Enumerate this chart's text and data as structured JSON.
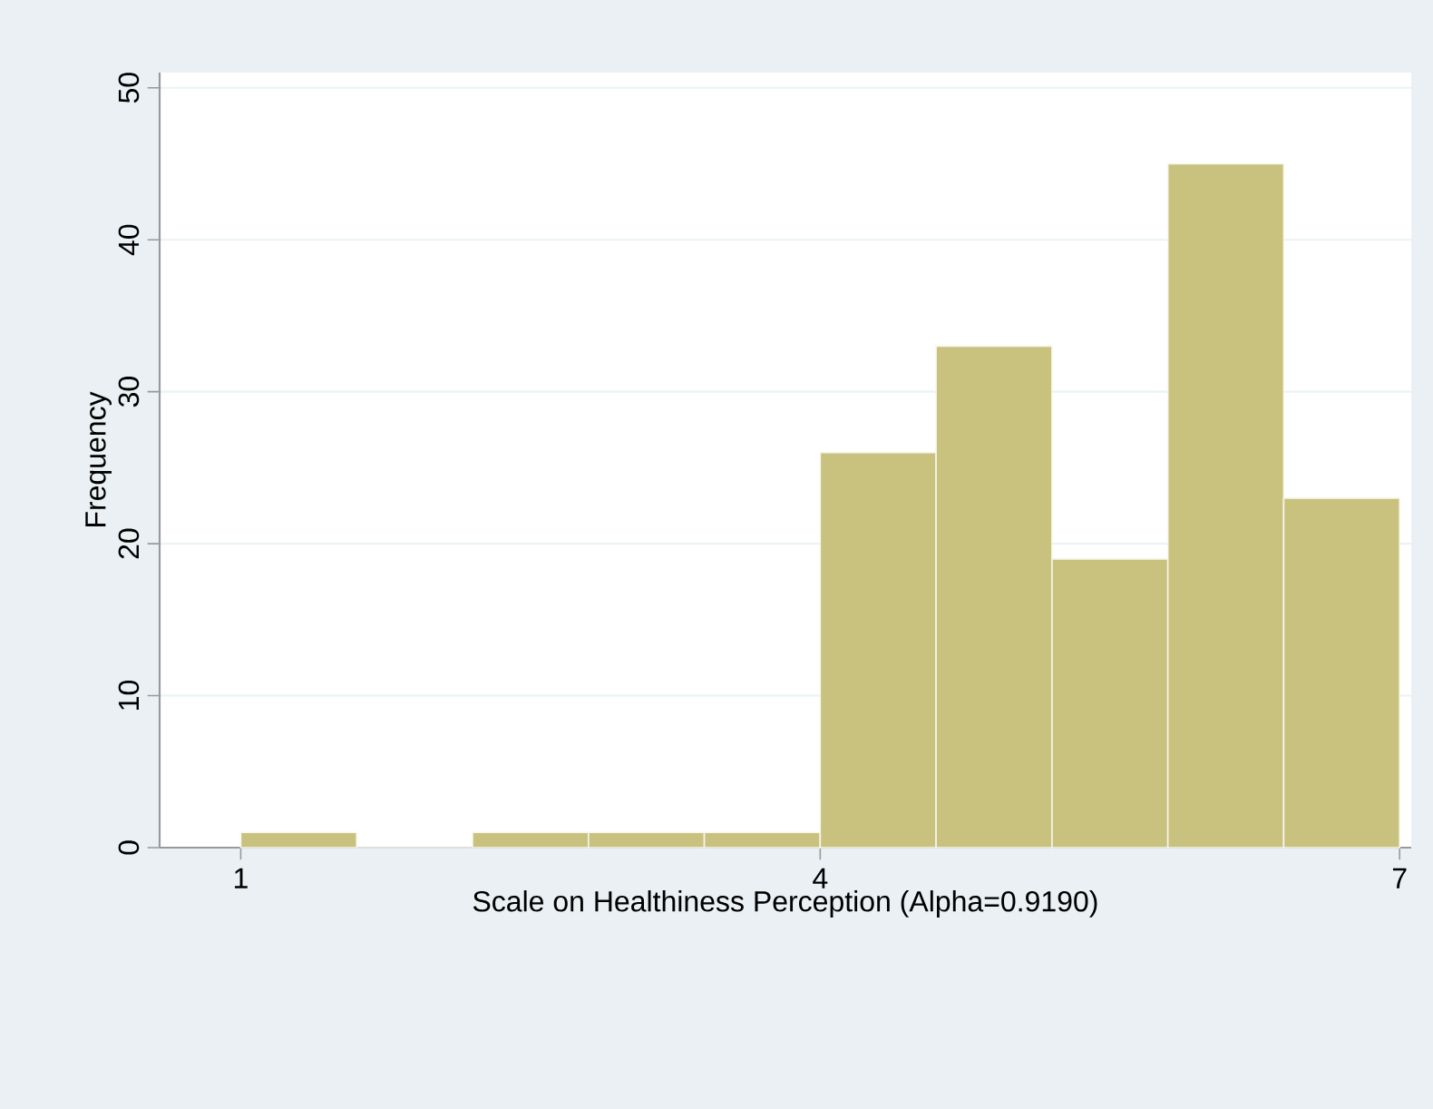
{
  "chart_data": {
    "type": "histogram",
    "xlabel": "Scale on Healthiness Perception (Alpha=0.9190)",
    "ylabel": "Frequency",
    "bins": [
      1.0,
      1.6,
      2.2,
      2.8,
      3.4,
      4.0,
      4.6,
      5.2,
      5.8,
      6.4,
      7.0
    ],
    "values": [
      1,
      0,
      1,
      1,
      1,
      26,
      33,
      19,
      45,
      23
    ],
    "color": "#c9c27f",
    "xlim": [
      0.58,
      7.06
    ],
    "ylim": [
      0,
      51
    ],
    "xticks": [
      1,
      4,
      7
    ],
    "yticks": [
      0,
      10,
      20,
      30,
      40,
      50
    ],
    "grid": "y"
  }
}
